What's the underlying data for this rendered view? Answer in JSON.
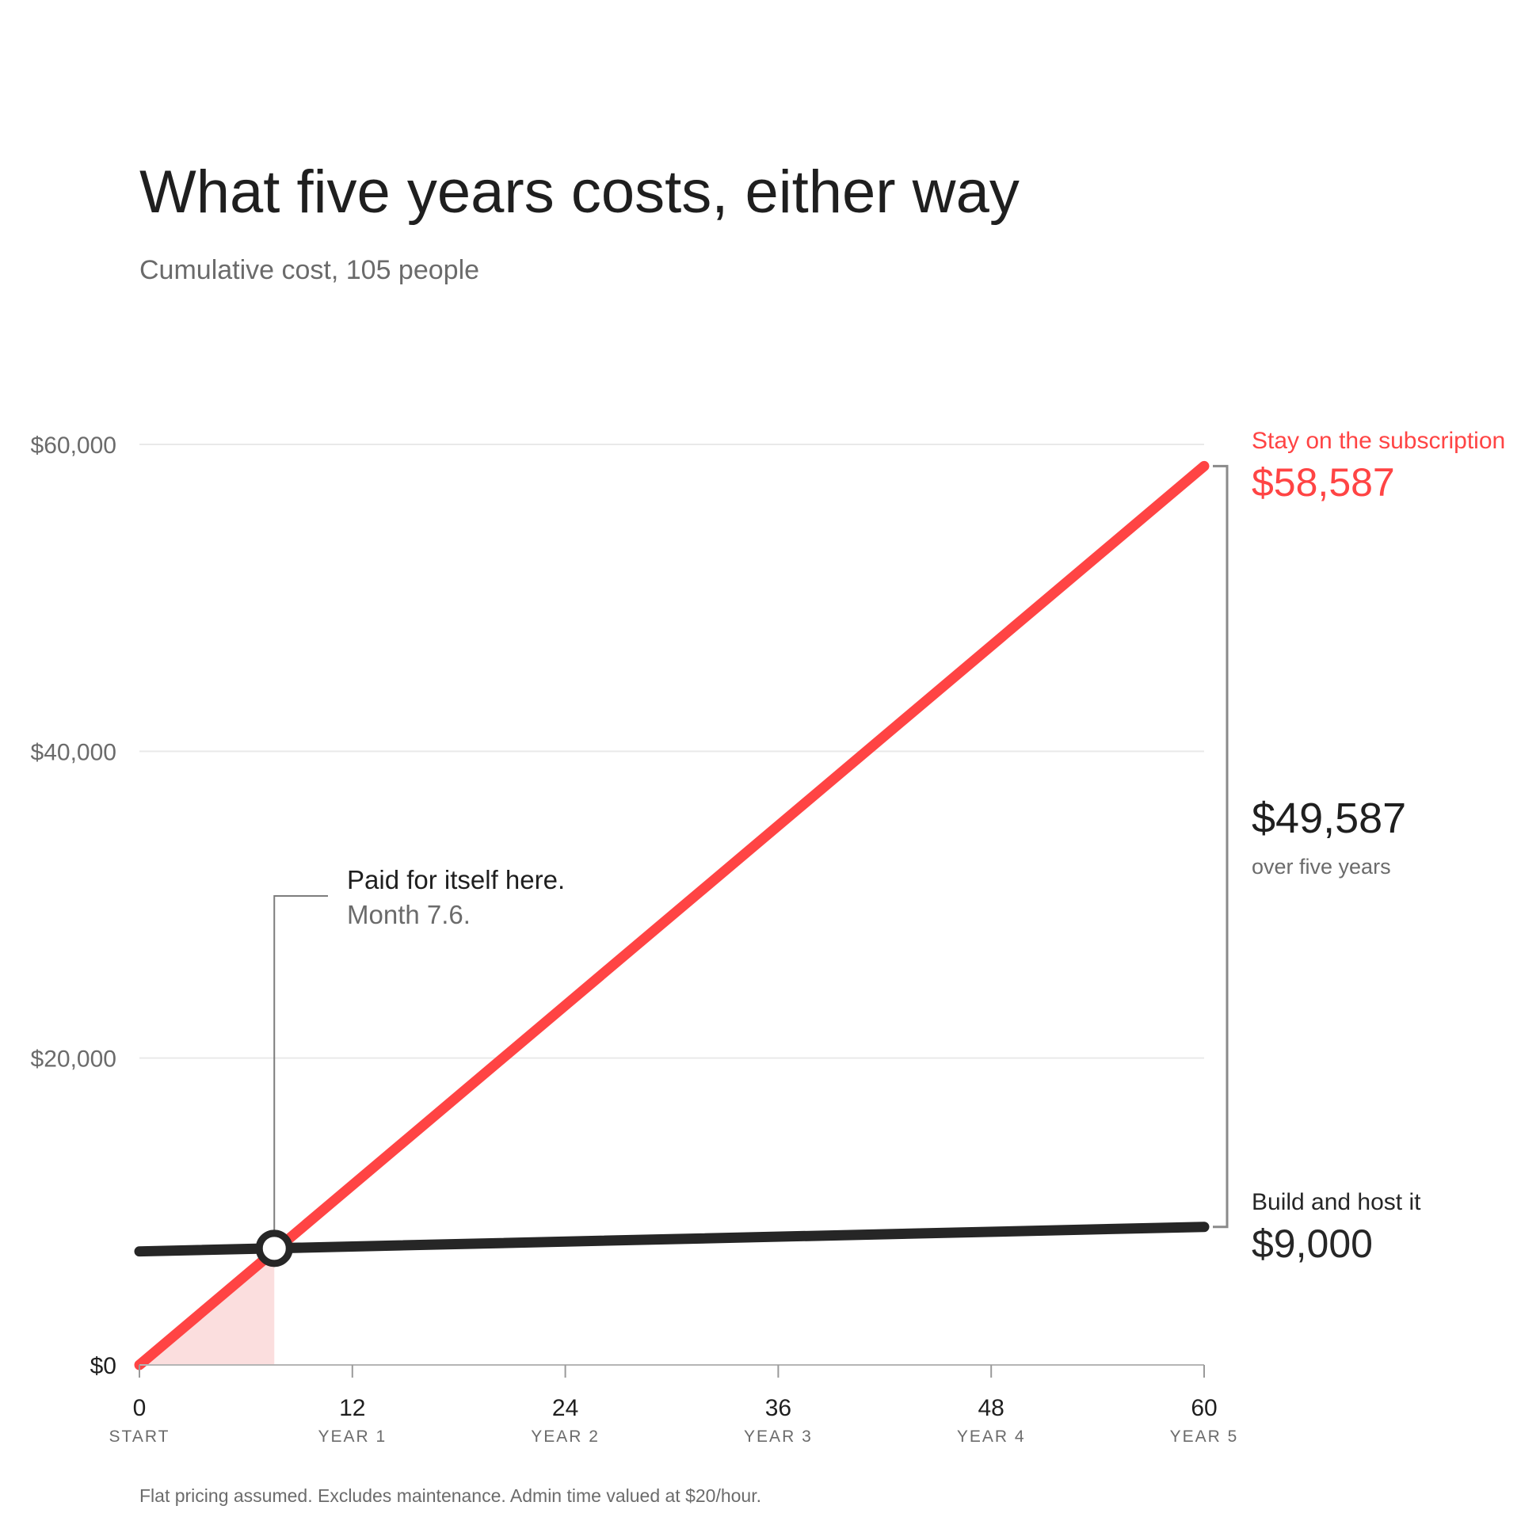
{
  "title": "What five years costs, either way",
  "subtitle": "Cumulative cost, 105 people",
  "footnote": "Flat pricing assumed. Excludes maintenance. Admin time valued at $20/hour.",
  "colors": {
    "subscription": "#ff4444",
    "build": "#262626",
    "shade": "#fbdede",
    "grid": "#e9e9e9",
    "bracket": "#8a8a8a"
  },
  "chart_data": {
    "type": "line",
    "title": "What five years costs, either way",
    "subtitle": "Cumulative cost, 105 people",
    "xlabel": "",
    "ylabel": "",
    "xlim": [
      0,
      60
    ],
    "ylim": [
      0,
      60000
    ],
    "grid": true,
    "y_ticks": [
      {
        "value": 0,
        "label": "$0"
      },
      {
        "value": 20000,
        "label": "$20,000"
      },
      {
        "value": 40000,
        "label": "$40,000"
      },
      {
        "value": 60000,
        "label": "$60,000"
      }
    ],
    "x_ticks": [
      {
        "value": 0,
        "label": "0",
        "sublabel": "START"
      },
      {
        "value": 12,
        "label": "12",
        "sublabel": "YEAR 1"
      },
      {
        "value": 24,
        "label": "24",
        "sublabel": "YEAR 2"
      },
      {
        "value": 36,
        "label": "36",
        "sublabel": "YEAR 3"
      },
      {
        "value": 48,
        "label": "48",
        "sublabel": "YEAR 4"
      },
      {
        "value": 60,
        "label": "60",
        "sublabel": "YEAR 5"
      }
    ],
    "series": [
      {
        "name": "Stay on the subscription",
        "end_label": "$58,587",
        "x": [
          0,
          60
        ],
        "y": [
          0,
          58587
        ]
      },
      {
        "name": "Build and host it",
        "end_label": "$9,000",
        "x": [
          0,
          60
        ],
        "y": [
          7400,
          9000
        ]
      }
    ],
    "difference": {
      "value": "$49,587",
      "note": "over five years"
    },
    "breakeven": {
      "x": 7.6,
      "y": 7600,
      "title": "Paid for itself here.",
      "subtitle": "Month 7.6."
    }
  }
}
